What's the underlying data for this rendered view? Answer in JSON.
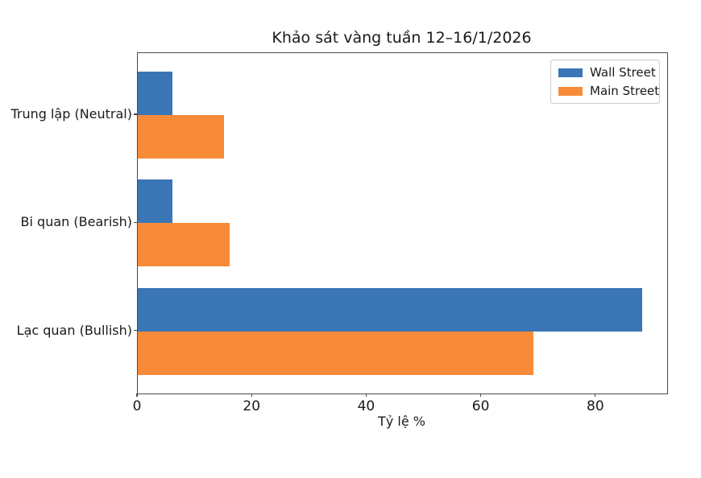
{
  "chart_data": {
    "type": "bar",
    "orientation": "horizontal",
    "title": "Khảo sát vàng tuần 12–16/1/2026",
    "xlabel": "Tỷ lệ %",
    "categories": [
      "Trung lập (Neutral)",
      "Bi quan (Bearish)",
      "Lạc quan (Bullish)"
    ],
    "series": [
      {
        "name": "Wall Street",
        "color": "#3a76b5",
        "values": [
          6,
          6,
          88
        ]
      },
      {
        "name": "Main Street",
        "color": "#f78b38",
        "values": [
          15,
          16,
          69
        ]
      }
    ],
    "xticks": [
      0,
      20,
      40,
      60,
      80
    ],
    "xtick_labels": [
      "0",
      "20",
      "40",
      "60",
      "80"
    ],
    "xlim": [
      0,
      92.4
    ],
    "grid": false,
    "legend_position": "upper right",
    "bar_height_units": 0.4
  }
}
